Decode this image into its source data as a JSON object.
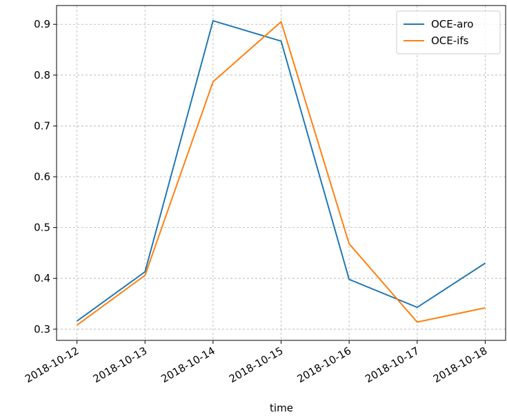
{
  "chart_data": {
    "type": "line",
    "x": [
      "2018-10-12",
      "2018-10-13",
      "2018-10-14",
      "2018-10-15",
      "2018-10-16",
      "2018-10-17",
      "2018-10-18"
    ],
    "x_label": "time",
    "series": [
      {
        "name": "OCE-aro",
        "color": "#1f77b4",
        "values": [
          0.316,
          0.413,
          0.907,
          0.867,
          0.398,
          0.343,
          0.43
        ]
      },
      {
        "name": "OCE-ifs",
        "color": "#ff7f0e",
        "values": [
          0.308,
          0.406,
          0.787,
          0.905,
          0.468,
          0.314,
          0.342
        ]
      }
    ],
    "ylim": [
      0.278,
      0.937
    ],
    "yticks": [
      0.3,
      0.4,
      0.5,
      0.6,
      0.7,
      0.8,
      0.9
    ],
    "grid": true,
    "legend": "upper-right"
  }
}
